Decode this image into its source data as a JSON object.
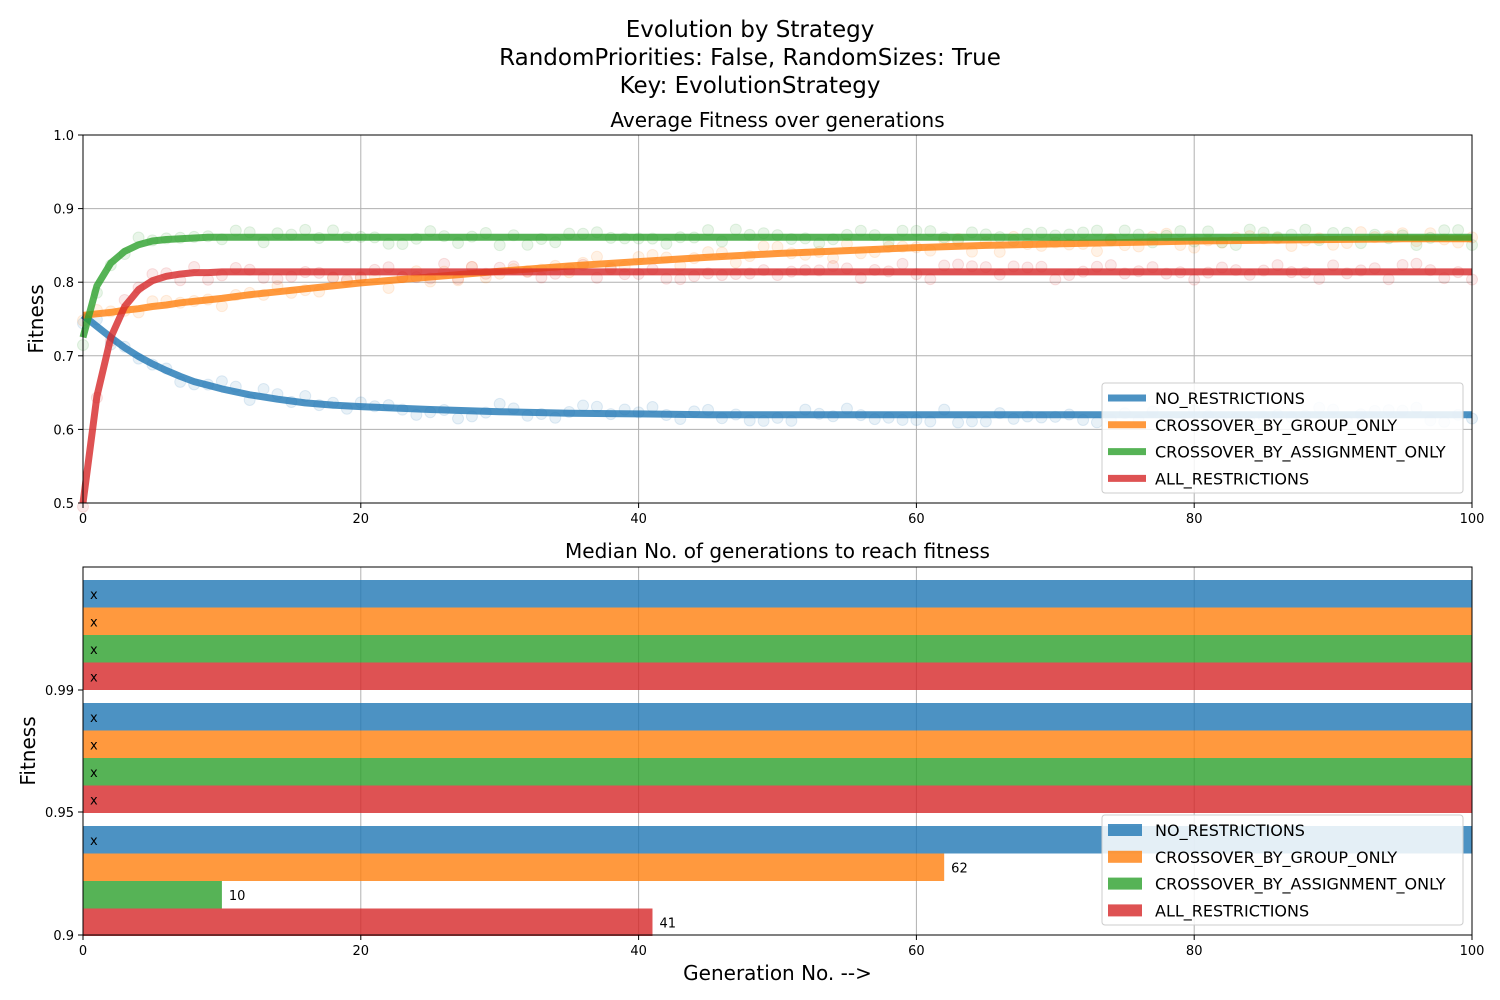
{
  "figure": {
    "suptitle_lines": [
      "Evolution by Strategy",
      "RandomPriorities: False, RandomSizes: True",
      "Key: EvolutionStrategy"
    ]
  },
  "colors": {
    "NO_RESTRICTIONS": "#1f77b4",
    "CROSSOVER_BY_GROUP_ONLY": "#ff7f0e",
    "CROSSOVER_BY_ASSIGNMENT_ONLY": "#2ca02c",
    "ALL_RESTRICTIONS": "#d62728"
  },
  "chart_data": [
    {
      "type": "line",
      "title": "Average Fitness over generations",
      "xlabel": "",
      "ylabel": "Fitness",
      "xlim": [
        0,
        100
      ],
      "ylim": [
        0.5,
        1.0
      ],
      "xticks": [
        0,
        20,
        40,
        60,
        80,
        100
      ],
      "yticks": [
        0.5,
        0.6,
        0.7,
        0.8,
        0.9,
        1.0
      ],
      "xtick_labels": [
        "0",
        "20",
        "40",
        "60",
        "80",
        "100"
      ],
      "ytick_labels": [
        "0.5",
        "0.6",
        "0.7",
        "0.8",
        "0.9",
        "1.0"
      ],
      "grid": true,
      "legend_loc": "lower-right",
      "x": [
        0,
        1,
        2,
        3,
        4,
        5,
        6,
        7,
        8,
        9,
        10,
        12,
        14,
        16,
        18,
        20,
        25,
        30,
        35,
        40,
        45,
        50,
        55,
        60,
        65,
        70,
        75,
        80,
        85,
        90,
        95,
        100
      ],
      "series": [
        {
          "name": "NO_RESTRICTIONS",
          "color": "#1f77b4",
          "values": [
            0.755,
            0.74,
            0.725,
            0.711,
            0.699,
            0.689,
            0.68,
            0.672,
            0.665,
            0.66,
            0.655,
            0.647,
            0.641,
            0.636,
            0.633,
            0.631,
            0.627,
            0.624,
            0.622,
            0.621,
            0.62,
            0.62,
            0.62,
            0.62,
            0.62,
            0.62,
            0.62,
            0.62,
            0.62,
            0.62,
            0.62,
            0.62
          ]
        },
        {
          "name": "CROSSOVER_BY_GROUP_ONLY",
          "color": "#ff7f0e",
          "values": [
            0.755,
            0.757,
            0.759,
            0.762,
            0.764,
            0.767,
            0.769,
            0.772,
            0.774,
            0.776,
            0.778,
            0.783,
            0.787,
            0.791,
            0.795,
            0.799,
            0.807,
            0.815,
            0.822,
            0.828,
            0.834,
            0.839,
            0.843,
            0.847,
            0.85,
            0.852,
            0.854,
            0.856,
            0.857,
            0.858,
            0.859,
            0.859
          ]
        },
        {
          "name": "CROSSOVER_BY_ASSIGNMENT_ONLY",
          "color": "#2ca02c",
          "values": [
            0.725,
            0.795,
            0.826,
            0.842,
            0.851,
            0.856,
            0.858,
            0.859,
            0.86,
            0.861,
            0.861,
            0.861,
            0.861,
            0.861,
            0.861,
            0.861,
            0.861,
            0.861,
            0.861,
            0.861,
            0.861,
            0.861,
            0.861,
            0.861,
            0.861,
            0.861,
            0.861,
            0.861,
            0.861,
            0.861,
            0.861,
            0.861
          ]
        },
        {
          "name": "ALL_RESTRICTIONS",
          "color": "#d62728",
          "values": [
            0.5,
            0.645,
            0.725,
            0.767,
            0.79,
            0.802,
            0.808,
            0.811,
            0.813,
            0.813,
            0.814,
            0.814,
            0.814,
            0.814,
            0.814,
            0.814,
            0.814,
            0.814,
            0.814,
            0.814,
            0.814,
            0.814,
            0.814,
            0.814,
            0.814,
            0.814,
            0.814,
            0.814,
            0.814,
            0.814,
            0.814,
            0.814
          ]
        }
      ]
    },
    {
      "type": "bar",
      "orientation": "horizontal",
      "title": "Median No. of generations to reach fitness",
      "xlabel": "Generation No. -->",
      "ylabel": "Fitness",
      "xlim": [
        0,
        100
      ],
      "xticks": [
        0,
        20,
        40,
        60,
        80,
        100
      ],
      "xtick_labels": [
        "0",
        "20",
        "40",
        "60",
        "80",
        "100"
      ],
      "categories": [
        "0.99",
        "0.95",
        "0.9"
      ],
      "grid": true,
      "legend_loc": "lower-right",
      "series": [
        {
          "name": "NO_RESTRICTIONS",
          "color": "#1f77b4",
          "values": [
            100,
            100,
            100
          ],
          "labels": [
            "x",
            "x",
            "x"
          ]
        },
        {
          "name": "CROSSOVER_BY_GROUP_ONLY",
          "color": "#ff7f0e",
          "values": [
            100,
            100,
            62
          ],
          "labels": [
            "x",
            "x",
            "62"
          ]
        },
        {
          "name": "CROSSOVER_BY_ASSIGNMENT_ONLY",
          "color": "#2ca02c",
          "values": [
            100,
            100,
            10
          ],
          "labels": [
            "x",
            "x",
            "10"
          ]
        },
        {
          "name": "ALL_RESTRICTIONS",
          "color": "#d62728",
          "values": [
            100,
            100,
            41
          ],
          "labels": [
            "x",
            "x",
            "41"
          ]
        }
      ]
    }
  ]
}
